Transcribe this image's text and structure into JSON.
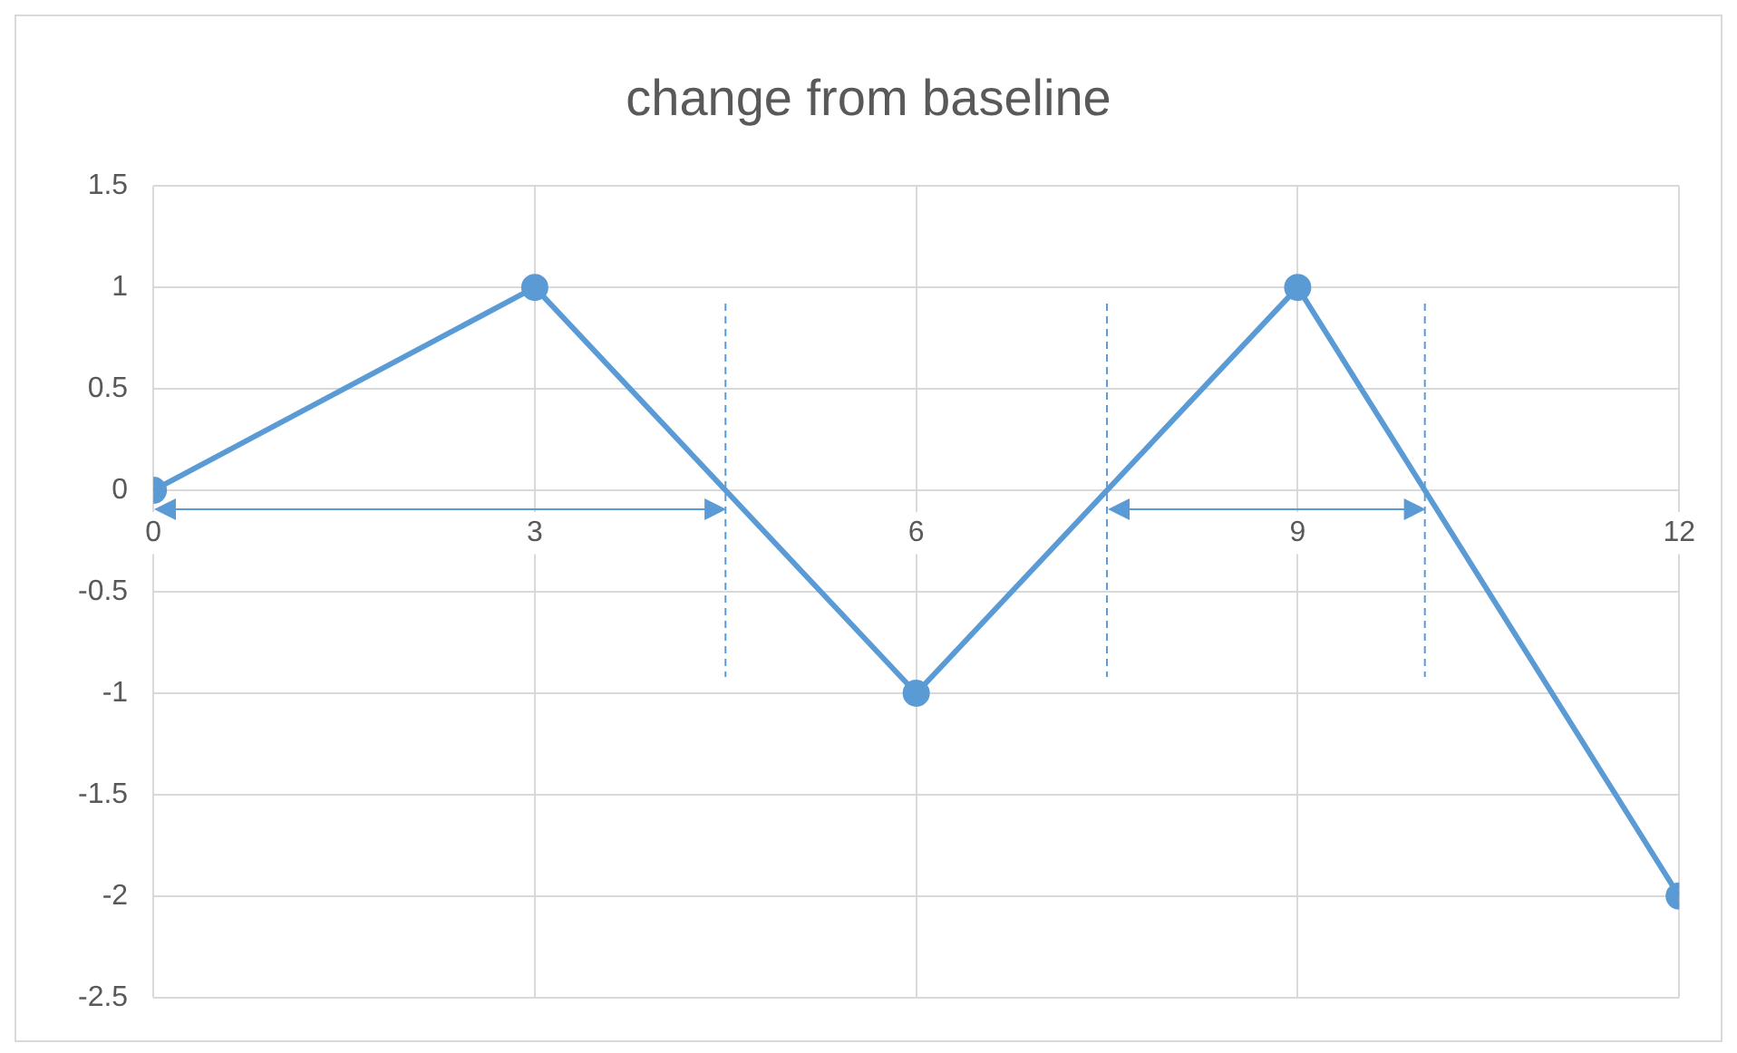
{
  "chart_data": {
    "type": "line",
    "title": "change from baseline",
    "x": [
      0,
      3,
      6,
      9,
      12
    ],
    "series": [
      {
        "color": "#5b9bd5",
        "values": [
          0,
          1,
          -1,
          1,
          -2
        ]
      }
    ],
    "xlim": [
      0,
      12
    ],
    "xticks": [
      0,
      3,
      6,
      9,
      12
    ],
    "ylim": [
      -2.5,
      1.5
    ],
    "yticks": [
      -2.5,
      -2,
      -1.5,
      -1,
      -0.5,
      0,
      0.5,
      1,
      1.5
    ],
    "grid": true,
    "legend": false,
    "marker": "circle",
    "line_style": "solid",
    "ref_lines": [
      {
        "axis": "x",
        "value": 4.5,
        "color": "#5b9bd5",
        "line_style": "dashed"
      },
      {
        "axis": "x",
        "value": 7.5,
        "color": "#5b9bd5",
        "line_style": "dashed"
      },
      {
        "axis": "x",
        "value": 10,
        "color": "#5b9bd5",
        "line_style": "dashed"
      }
    ]
  }
}
